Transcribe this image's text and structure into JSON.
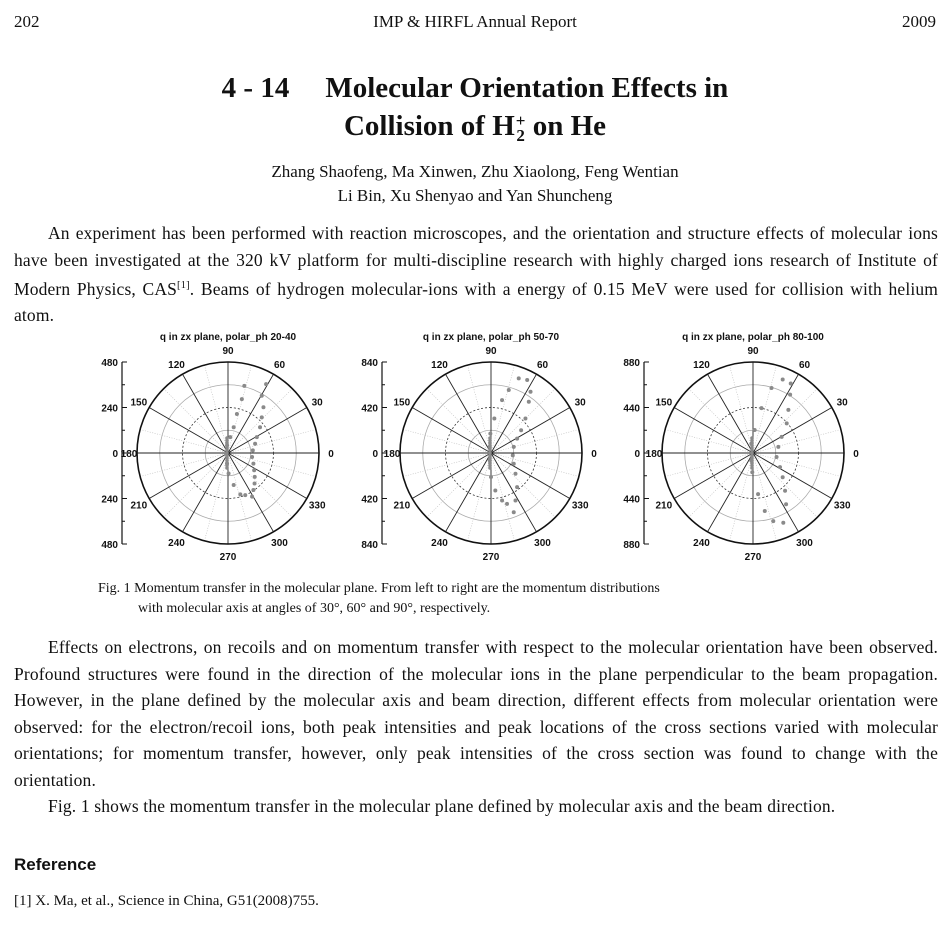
{
  "header": {
    "page_number": "202",
    "journal": "IMP & HIRFL Annual Report",
    "year": "2009"
  },
  "article": {
    "number": "4 - 14",
    "title_line1": "Molecular Orientation Effects in",
    "title_line2_prefix": "Collision of H",
    "title_sub": "2",
    "title_sup": "+",
    "title_line2_suffix": " on He",
    "authors_line1": "Zhang Shaofeng, Ma Xinwen, Zhu Xiaolong, Feng Wentian",
    "authors_line2": "Li Bin, Xu Shenyao and Yan Shuncheng",
    "para1_a": "An experiment has been performed with reaction microscopes, and the orientation and structure effects of molecular ions have been investigated at the 320 kV platform for multi-discipline research with highly charged ions research of Institute of Modern Physics, CAS",
    "para1_cite": "[1]",
    "para1_b": ". Beams of hydrogen molecular-ions with a energy of 0.15 MeV were used for collision with helium atom.",
    "figure_caption_line1": "Fig. 1  Momentum transfer in the molecular plane. From left to right are the momentum distributions",
    "figure_caption_line2": "with molecular axis at angles of 30°, 60° and 90°, respectively.",
    "para2": "Effects on electrons, on recoils and on momentum transfer with respect to the molecular orientation have been observed. Profound structures were found in the direction of the molecular ions in the plane perpendicular to the beam propagation. However, in the plane defined by the molecular axis and beam direction, different effects from molecular orientation were observed: for the electron/recoil ions, both peak intensities and peak locations of the cross sections varied with molecular orientations; for momentum transfer, however, only peak intensities of the cross section was found to change with the orientation.",
    "para3": "Fig. 1 shows the momentum transfer in the molecular plane defined by molecular axis and the beam direction.",
    "reference_heading": "Reference",
    "reference_1": "[1] X. Ma, et al., Science in China, G51(2008)755."
  },
  "chart_data": [
    {
      "type": "scatter",
      "subtype": "polar",
      "title": "q in zx plane, polar_ph 20-40",
      "rmax": 480,
      "radial_tick_labels": [
        "480",
        "240",
        "0",
        "240",
        "480"
      ],
      "angle_tick_labels": [
        "0",
        "30",
        "60",
        "90",
        "120",
        "150",
        "180",
        "210",
        "240",
        "270",
        "300",
        "330"
      ],
      "grid": true,
      "marker_color": "#8a8a8a",
      "points": [
        [
          201,
          363
        ],
        [
          178,
          302
        ],
        [
          187,
          241
        ],
        [
          178,
          188
        ],
        [
          169,
          136
        ],
        [
          152,
          84
        ],
        [
          143,
          49
        ],
        [
          131,
          14
        ],
        [
          127,
          -21
        ],
        [
          134,
          -56
        ],
        [
          138,
          -91
        ],
        [
          141,
          -126
        ],
        [
          140,
          -161
        ],
        [
          134,
          -195
        ],
        [
          127,
          -230
        ],
        [
          86,
          354
        ],
        [
          73,
          284
        ],
        [
          47,
          206
        ],
        [
          30,
          136
        ],
        [
          12,
          84
        ],
        [
          -5,
          40
        ],
        [
          -9,
          -3
        ],
        [
          -5,
          -56
        ],
        [
          3,
          -108
        ],
        [
          30,
          -169
        ],
        [
          65,
          -218
        ],
        [
          91,
          -222
        ]
      ]
    },
    {
      "type": "scatter",
      "subtype": "polar",
      "title": "q in zx plane, polar_ph 50-70",
      "rmax": 840,
      "radial_tick_labels": [
        "840",
        "420",
        "0",
        "420",
        "840"
      ],
      "angle_tick_labels": [
        "0",
        "30",
        "60",
        "90",
        "120",
        "150",
        "180",
        "210",
        "240",
        "270",
        "300",
        "330"
      ],
      "grid": true,
      "marker_color": "#8a8a8a",
      "points": [
        [
          334,
          674
        ],
        [
          365,
          565
        ],
        [
          349,
          473
        ],
        [
          318,
          318
        ],
        [
          278,
          210
        ],
        [
          241,
          133
        ],
        [
          210,
          56
        ],
        [
          201,
          -22
        ],
        [
          210,
          -99
        ],
        [
          226,
          -192
        ],
        [
          241,
          -315
        ],
        [
          226,
          -439
        ],
        [
          210,
          -547
        ],
        [
          256,
          689
        ],
        [
          164,
          581
        ],
        [
          102,
          488
        ],
        [
          31,
          318
        ],
        [
          -6,
          179
        ],
        [
          -12,
          56
        ],
        [
          -12,
          -68
        ],
        [
          0,
          -222
        ],
        [
          40,
          -346
        ],
        [
          102,
          -439
        ],
        [
          148,
          -470
        ]
      ]
    },
    {
      "type": "scatter",
      "subtype": "polar",
      "title": "q in zx plane,  polar_ph 80-100",
      "rmax": 880,
      "radial_tick_labels": [
        "880",
        "440",
        "0",
        "440",
        "880"
      ],
      "angle_tick_labels": [
        "0",
        "30",
        "60",
        "90",
        "120",
        "150",
        "180",
        "210",
        "240",
        "270",
        "300",
        "330"
      ],
      "grid": true,
      "marker_color": "#8a8a8a",
      "points": [
        [
          365,
          672
        ],
        [
          359,
          564
        ],
        [
          342,
          417
        ],
        [
          326,
          287
        ],
        [
          277,
          156
        ],
        [
          245,
          59
        ],
        [
          228,
          -39
        ],
        [
          261,
          -137
        ],
        [
          287,
          -235
        ],
        [
          310,
          -365
        ],
        [
          320,
          -496
        ],
        [
          293,
          -675
        ],
        [
          287,
          711
        ],
        [
          179,
          629
        ],
        [
          82,
          434
        ],
        [
          16,
          222
        ],
        [
          -16,
          91
        ],
        [
          -16,
          -72
        ],
        [
          -7,
          -186
        ],
        [
          49,
          -398
        ],
        [
          114,
          -561
        ],
        [
          196,
          -659
        ]
      ]
    }
  ]
}
